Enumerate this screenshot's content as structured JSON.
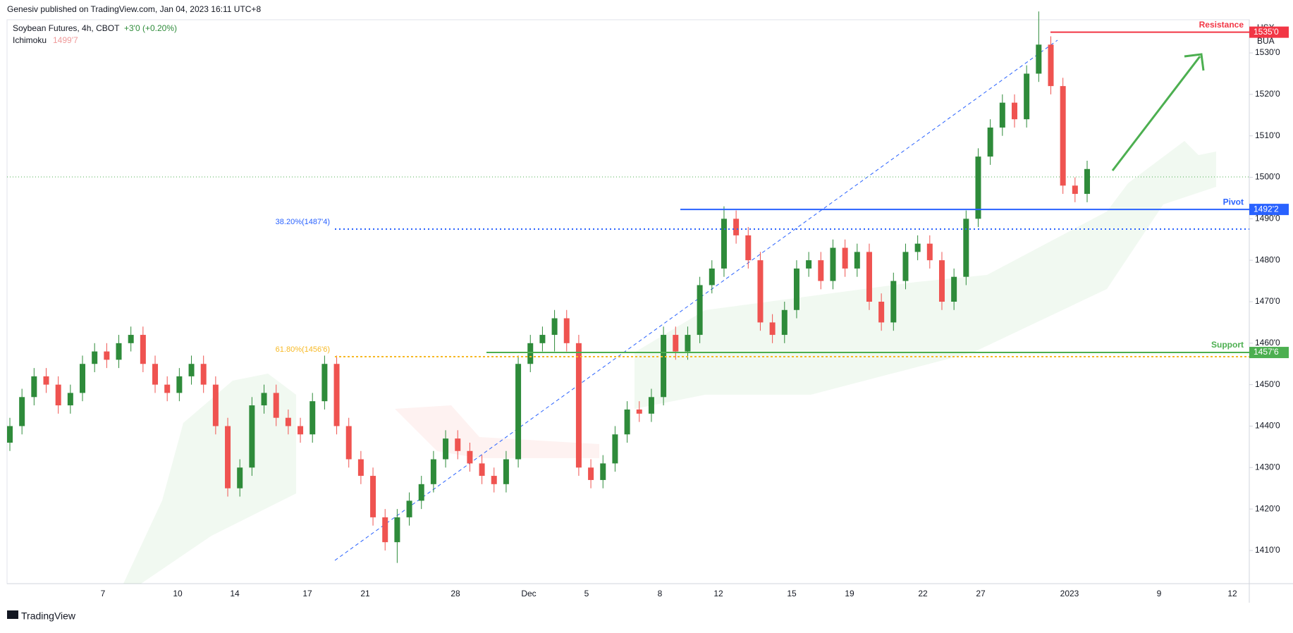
{
  "header": {
    "publisher": "Genesiv published on TradingView.com, Jan 04, 2023 16:11 UTC+8",
    "brand": "TradingView"
  },
  "chart_data": {
    "type": "candlestick",
    "title": "Soybean Futures, 4h, CBOT",
    "change": "+3'0 (+0.20%)",
    "indicator": {
      "name": "Ichimoku",
      "value_label": "1499'7"
    },
    "currency": "USX",
    "unit": "BUA",
    "xticks": [
      "7",
      "10",
      "14",
      "17",
      "21",
      "28",
      "Dec",
      "5",
      "8",
      "12",
      "15",
      "19",
      "22",
      "27",
      "2023",
      "9",
      "12"
    ],
    "ylim": [
      1402,
      1538
    ],
    "yticks": [
      {
        "value": 1410,
        "label": "1410'0"
      },
      {
        "value": 1420,
        "label": "1420'0"
      },
      {
        "value": 1430,
        "label": "1430'0"
      },
      {
        "value": 1440,
        "label": "1440'0"
      },
      {
        "value": 1450,
        "label": "1450'0"
      },
      {
        "value": 1460,
        "label": "1460'0"
      },
      {
        "value": 1470,
        "label": "1470'0"
      },
      {
        "value": 1480,
        "label": "1480'0"
      },
      {
        "value": 1490,
        "label": "1490'0"
      },
      {
        "value": 1500,
        "label": "1500'0"
      },
      {
        "value": 1510,
        "label": "1510'0"
      },
      {
        "value": 1520,
        "label": "1520'0"
      },
      {
        "value": 1530,
        "label": "1530'0"
      }
    ],
    "up_color": "#26a69a",
    "candle_up": "#2e8b3a",
    "candle_down": "#ef5350",
    "candles": {
      "open": [
        1436,
        1440,
        1447,
        1452,
        1450,
        1445,
        1448,
        1455,
        1458,
        1456,
        1460,
        1462,
        1455,
        1450,
        1448,
        1452,
        1455,
        1450,
        1440,
        1425,
        1430,
        1445,
        1448,
        1442,
        1440,
        1438,
        1446,
        1455,
        1440,
        1432,
        1428,
        1418,
        1412,
        1418,
        1422,
        1426,
        1432,
        1437,
        1434,
        1431,
        1428,
        1426,
        1432,
        1455,
        1460,
        1462,
        1466,
        1460,
        1430,
        1427,
        1431,
        1438,
        1444,
        1443,
        1447,
        1462,
        1458,
        1462,
        1474,
        1478,
        1490,
        1486,
        1480,
        1465,
        1462,
        1468,
        1478,
        1480,
        1475,
        1483,
        1478,
        1482,
        1470,
        1465,
        1475,
        1482,
        1484,
        1480,
        1470,
        1476,
        1490,
        1505,
        1512,
        1518,
        1514,
        1525,
        1532,
        1522,
        1498,
        1496
      ],
      "high": [
        1442,
        1449,
        1454,
        1454,
        1452,
        1450,
        1457,
        1460,
        1460,
        1462,
        1464,
        1464,
        1457,
        1452,
        1454,
        1457,
        1457,
        1452,
        1442,
        1432,
        1447,
        1450,
        1450,
        1444,
        1442,
        1448,
        1457,
        1457,
        1442,
        1434,
        1430,
        1420,
        1420,
        1424,
        1428,
        1434,
        1439,
        1439,
        1436,
        1433,
        1430,
        1434,
        1457,
        1462,
        1464,
        1468,
        1468,
        1462,
        1432,
        1433,
        1440,
        1446,
        1446,
        1449,
        1464,
        1464,
        1464,
        1476,
        1480,
        1493,
        1492,
        1488,
        1482,
        1467,
        1470,
        1480,
        1482,
        1482,
        1485,
        1485,
        1484,
        1484,
        1472,
        1477,
        1484,
        1486,
        1486,
        1482,
        1478,
        1492,
        1507,
        1514,
        1520,
        1520,
        1527,
        1540,
        1534,
        1524,
        1500,
        1504
      ],
      "low": [
        1434,
        1438,
        1445,
        1448,
        1443,
        1443,
        1446,
        1453,
        1454,
        1454,
        1458,
        1453,
        1448,
        1446,
        1446,
        1450,
        1448,
        1438,
        1423,
        1423,
        1428,
        1443,
        1440,
        1438,
        1436,
        1436,
        1444,
        1438,
        1430,
        1426,
        1416,
        1410,
        1407,
        1416,
        1420,
        1424,
        1430,
        1432,
        1429,
        1426,
        1424,
        1424,
        1430,
        1453,
        1458,
        1458,
        1458,
        1428,
        1425,
        1425,
        1429,
        1436,
        1441,
        1441,
        1445,
        1456,
        1456,
        1460,
        1472,
        1476,
        1484,
        1478,
        1463,
        1460,
        1460,
        1466,
        1476,
        1473,
        1473,
        1476,
        1476,
        1468,
        1463,
        1463,
        1473,
        1480,
        1478,
        1468,
        1468,
        1474,
        1488,
        1503,
        1510,
        1512,
        1512,
        1523,
        1520,
        1496,
        1494,
        1494
      ],
      "close": [
        1440,
        1447,
        1452,
        1450,
        1445,
        1448,
        1455,
        1458,
        1456,
        1460,
        1462,
        1455,
        1450,
        1448,
        1452,
        1455,
        1450,
        1440,
        1425,
        1430,
        1445,
        1448,
        1442,
        1440,
        1438,
        1446,
        1455,
        1440,
        1432,
        1428,
        1418,
        1412,
        1418,
        1422,
        1426,
        1432,
        1437,
        1434,
        1431,
        1428,
        1426,
        1432,
        1455,
        1460,
        1462,
        1466,
        1460,
        1430,
        1427,
        1431,
        1438,
        1444,
        1443,
        1447,
        1462,
        1458,
        1462,
        1474,
        1478,
        1490,
        1486,
        1480,
        1465,
        1462,
        1468,
        1478,
        1480,
        1475,
        1483,
        1478,
        1482,
        1470,
        1465,
        1475,
        1482,
        1484,
        1480,
        1470,
        1476,
        1490,
        1505,
        1512,
        1518,
        1514,
        1525,
        1532,
        1522,
        1498,
        1496,
        1502
      ]
    },
    "levels": [
      {
        "name": "Resistance",
        "value": 1535,
        "label": "1535'0",
        "color": "#f23645"
      },
      {
        "name": "Pivot",
        "value": 1492.25,
        "label": "1492'2",
        "color": "#2962ff"
      },
      {
        "name": "Support",
        "value": 1457.75,
        "label": "1457'6",
        "color": "#4caf50"
      }
    ],
    "fib_levels": [
      {
        "label": "38.20%(1487'4)",
        "value": 1487.5,
        "color": "#2962ff"
      },
      {
        "label": "61.80%(1456'6)",
        "value": 1456.75,
        "color": "#f7b924"
      }
    ]
  }
}
